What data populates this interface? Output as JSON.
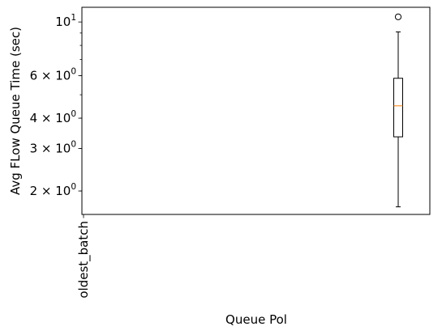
{
  "chart_data": {
    "type": "box",
    "title": "",
    "xlabel": "Queue Pol",
    "ylabel": "Avg FLow Queue Time (sec)",
    "yscale": "log",
    "ylim": [
      1.6,
      11.5
    ],
    "categories": [
      "oldest_batch"
    ],
    "boxes": [
      {
        "category": "oldest_batch",
        "x": 0,
        "whisker_low": 1.72,
        "q1": 3.35,
        "median": 4.5,
        "q3": 5.85,
        "whisker_high": 9.1,
        "outliers": [
          10.5
        ]
      }
    ],
    "xlim": [
      -1.0,
      0.1
    ],
    "y_ticks": [
      {
        "value": 10,
        "base": "10",
        "exp": "1"
      },
      {
        "value": 6,
        "base": "6 × 10",
        "exp": "0"
      },
      {
        "value": 4,
        "base": "4 × 10",
        "exp": "0"
      },
      {
        "value": 3,
        "base": "3 × 10",
        "exp": "0"
      },
      {
        "value": 2,
        "base": "2 × 10",
        "exp": "0"
      }
    ],
    "y_minor_ticks": [
      2,
      3,
      4,
      5,
      6,
      7,
      8,
      9
    ],
    "colors": {
      "box": "#000000",
      "median": "#ff7f0e",
      "axes": "#000000",
      "background": "#ffffff"
    },
    "grid": false,
    "legend": "none"
  }
}
